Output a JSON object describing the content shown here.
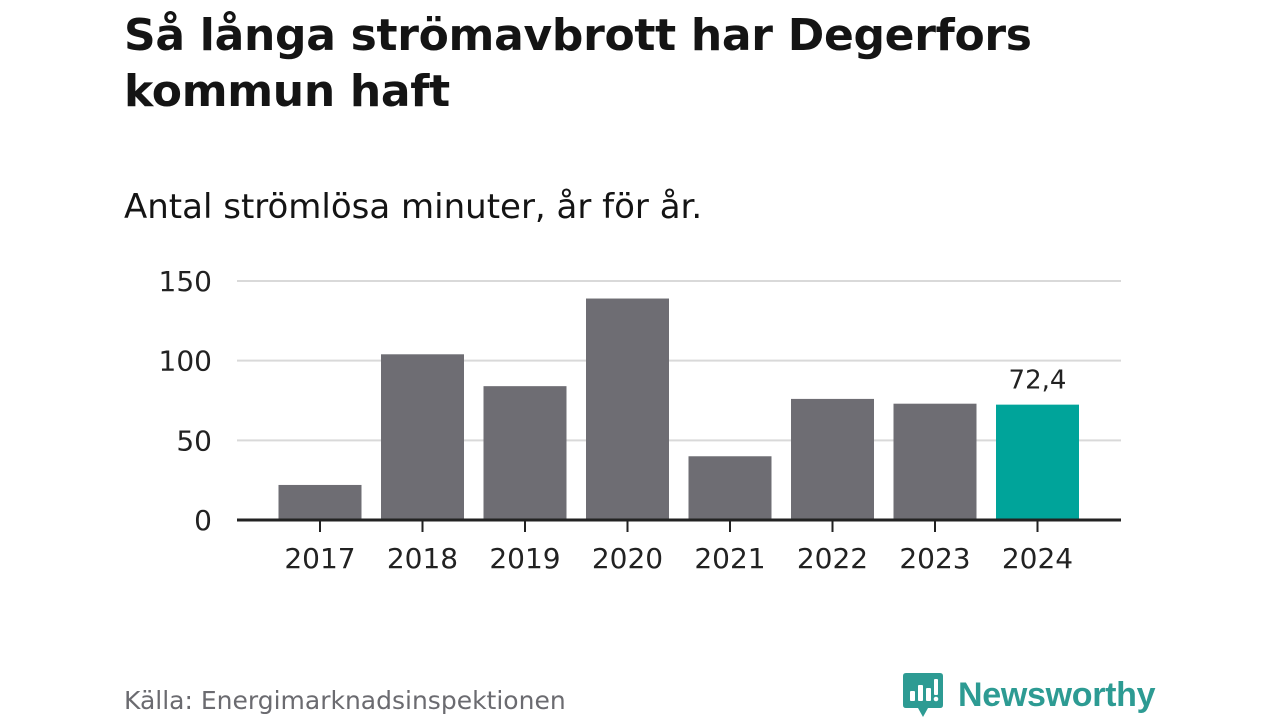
{
  "header": {
    "title": "Så långa strömavbrott har Degerfors kommun haft",
    "subtitle": "Antal strömlösa minuter, år för år."
  },
  "footer": {
    "source": "Källa: Energimarknadsinspektionen",
    "brand": "Newsworthy"
  },
  "colors": {
    "bar": "#6e6d73",
    "highlight": "#00a49a",
    "grid": "#d9d9d9",
    "axis": "#222222",
    "brand": "#2d9b93"
  },
  "chart_data": {
    "type": "bar",
    "title": "Så långa strömavbrott har Degerfors kommun haft",
    "subtitle": "Antal strömlösa minuter, år för år.",
    "xlabel": "",
    "ylabel": "",
    "categories": [
      "2017",
      "2018",
      "2019",
      "2020",
      "2021",
      "2022",
      "2023",
      "2024"
    ],
    "values": [
      22,
      104,
      84,
      139,
      40,
      76,
      73,
      72.4
    ],
    "highlight_index": 7,
    "highlight_label": "72,4",
    "yticks": [
      0,
      50,
      100,
      150
    ],
    "ytick_labels": [
      "0",
      "50",
      "100",
      "150"
    ],
    "ylim": [
      0,
      150
    ],
    "grid": true
  }
}
